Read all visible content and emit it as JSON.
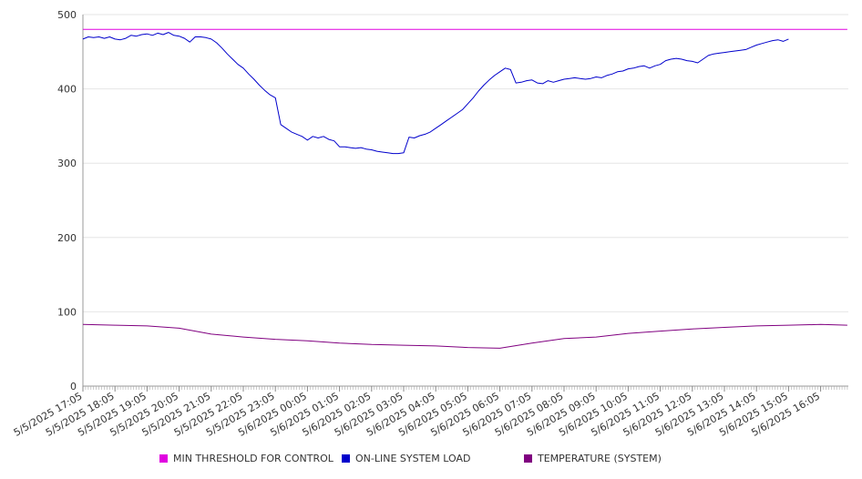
{
  "chart_data": {
    "type": "line",
    "ylim": [
      0,
      500
    ],
    "y_ticks": [
      "0",
      "100",
      "200",
      "300",
      "400",
      "500"
    ],
    "x_tick_labels": [
      "5/5/2025 17:05",
      "5/5/2025 18:05",
      "5/5/2025 19:05",
      "5/5/2025 20:05",
      "5/5/2025 21:05",
      "5/5/2025 22:05",
      "5/5/2025 23:05",
      "5/6/2025 00:05",
      "5/6/2025 01:05",
      "5/6/2025 02:05",
      "5/6/2025 03:05",
      "5/6/2025 04:05",
      "5/6/2025 05:05",
      "5/6/2025 06:05",
      "5/6/2025 07:05",
      "5/6/2025 08:05",
      "5/6/2025 09:05",
      "5/6/2025 10:05",
      "5/6/2025 11:05",
      "5/6/2025 12:05",
      "5/6/2025 13:05",
      "5/6/2025 14:05",
      "5/6/2025 15:05",
      "5/6/2025 16:05"
    ],
    "grid": "horizontal",
    "legend_position": "bottom",
    "series": [
      {
        "name": "MIN THRESHOLD FOR CONTROL",
        "color": "#e000e0",
        "points": [
          [
            "5/5/2025 17:05",
            480
          ],
          [
            "5/6/2025 16:55",
            480
          ]
        ]
      },
      {
        "name": "ON-LINE SYSTEM LOAD",
        "color": "#0000cc",
        "points": [
          [
            "5/5/2025 17:05",
            467
          ],
          [
            "5/5/2025 17:15",
            470
          ],
          [
            "5/5/2025 17:25",
            469
          ],
          [
            "5/5/2025 17:35",
            470
          ],
          [
            "5/5/2025 17:45",
            468
          ],
          [
            "5/5/2025 17:55",
            470
          ],
          [
            "5/5/2025 18:05",
            467
          ],
          [
            "5/5/2025 18:15",
            466
          ],
          [
            "5/5/2025 18:25",
            468
          ],
          [
            "5/5/2025 18:35",
            472
          ],
          [
            "5/5/2025 18:45",
            471
          ],
          [
            "5/5/2025 18:55",
            473
          ],
          [
            "5/5/2025 19:05",
            474
          ],
          [
            "5/5/2025 19:15",
            472
          ],
          [
            "5/5/2025 19:25",
            475
          ],
          [
            "5/5/2025 19:35",
            473
          ],
          [
            "5/5/2025 19:45",
            476
          ],
          [
            "5/5/2025 19:55",
            472
          ],
          [
            "5/5/2025 20:05",
            471
          ],
          [
            "5/5/2025 20:15",
            468
          ],
          [
            "5/5/2025 20:25",
            463
          ],
          [
            "5/5/2025 20:35",
            470
          ],
          [
            "5/5/2025 20:45",
            470
          ],
          [
            "5/5/2025 20:55",
            469
          ],
          [
            "5/5/2025 21:05",
            467
          ],
          [
            "5/5/2025 21:15",
            462
          ],
          [
            "5/5/2025 21:25",
            455
          ],
          [
            "5/5/2025 21:35",
            447
          ],
          [
            "5/5/2025 21:45",
            440
          ],
          [
            "5/5/2025 21:55",
            433
          ],
          [
            "5/5/2025 22:05",
            428
          ],
          [
            "5/5/2025 22:15",
            420
          ],
          [
            "5/5/2025 22:25",
            413
          ],
          [
            "5/5/2025 22:35",
            405
          ],
          [
            "5/5/2025 22:45",
            398
          ],
          [
            "5/5/2025 22:55",
            392
          ],
          [
            "5/5/2025 23:05",
            388
          ],
          [
            "5/5/2025 23:15",
            352
          ],
          [
            "5/5/2025 23:25",
            347
          ],
          [
            "5/5/2025 23:35",
            342
          ],
          [
            "5/5/2025 23:45",
            339
          ],
          [
            "5/5/2025 23:55",
            336
          ],
          [
            "5/6/2025 00:05",
            331
          ],
          [
            "5/6/2025 00:15",
            336
          ],
          [
            "5/6/2025 00:25",
            334
          ],
          [
            "5/6/2025 00:35",
            336
          ],
          [
            "5/6/2025 00:45",
            332
          ],
          [
            "5/6/2025 00:55",
            330
          ],
          [
            "5/6/2025 01:05",
            322
          ],
          [
            "5/6/2025 01:15",
            322
          ],
          [
            "5/6/2025 01:25",
            321
          ],
          [
            "5/6/2025 01:35",
            320
          ],
          [
            "5/6/2025 01:45",
            321
          ],
          [
            "5/6/2025 01:55",
            319
          ],
          [
            "5/6/2025 02:05",
            318
          ],
          [
            "5/6/2025 02:15",
            316
          ],
          [
            "5/6/2025 02:25",
            315
          ],
          [
            "5/6/2025 02:35",
            314
          ],
          [
            "5/6/2025 02:45",
            313
          ],
          [
            "5/6/2025 02:55",
            313
          ],
          [
            "5/6/2025 03:05",
            314
          ],
          [
            "5/6/2025 03:15",
            335
          ],
          [
            "5/6/2025 03:25",
            334
          ],
          [
            "5/6/2025 03:35",
            337
          ],
          [
            "5/6/2025 03:45",
            339
          ],
          [
            "5/6/2025 03:55",
            342
          ],
          [
            "5/6/2025 04:05",
            347
          ],
          [
            "5/6/2025 04:15",
            352
          ],
          [
            "5/6/2025 04:25",
            357
          ],
          [
            "5/6/2025 04:35",
            362
          ],
          [
            "5/6/2025 04:45",
            367
          ],
          [
            "5/6/2025 04:55",
            372
          ],
          [
            "5/6/2025 05:05",
            380
          ],
          [
            "5/6/2025 05:15",
            388
          ],
          [
            "5/6/2025 05:25",
            397
          ],
          [
            "5/6/2025 05:35",
            405
          ],
          [
            "5/6/2025 05:45",
            412
          ],
          [
            "5/6/2025 05:55",
            418
          ],
          [
            "5/6/2025 06:05",
            423
          ],
          [
            "5/6/2025 06:15",
            428
          ],
          [
            "5/6/2025 06:25",
            426
          ],
          [
            "5/6/2025 06:35",
            408
          ],
          [
            "5/6/2025 06:45",
            409
          ],
          [
            "5/6/2025 06:55",
            411
          ],
          [
            "5/6/2025 07:05",
            412
          ],
          [
            "5/6/2025 07:15",
            408
          ],
          [
            "5/6/2025 07:25",
            407
          ],
          [
            "5/6/2025 07:35",
            411
          ],
          [
            "5/6/2025 07:45",
            409
          ],
          [
            "5/6/2025 07:55",
            411
          ],
          [
            "5/6/2025 08:05",
            413
          ],
          [
            "5/6/2025 08:15",
            414
          ],
          [
            "5/6/2025 08:25",
            415
          ],
          [
            "5/6/2025 08:35",
            414
          ],
          [
            "5/6/2025 08:45",
            413
          ],
          [
            "5/6/2025 08:55",
            414
          ],
          [
            "5/6/2025 09:05",
            416
          ],
          [
            "5/6/2025 09:15",
            415
          ],
          [
            "5/6/2025 09:25",
            418
          ],
          [
            "5/6/2025 09:35",
            420
          ],
          [
            "5/6/2025 09:45",
            423
          ],
          [
            "5/6/2025 09:55",
            424
          ],
          [
            "5/6/2025 10:05",
            427
          ],
          [
            "5/6/2025 10:15",
            428
          ],
          [
            "5/6/2025 10:25",
            430
          ],
          [
            "5/6/2025 10:35",
            431
          ],
          [
            "5/6/2025 10:45",
            428
          ],
          [
            "5/6/2025 10:55",
            431
          ],
          [
            "5/6/2025 11:05",
            433
          ],
          [
            "5/6/2025 11:15",
            438
          ],
          [
            "5/6/2025 11:25",
            440
          ],
          [
            "5/6/2025 11:35",
            441
          ],
          [
            "5/6/2025 11:45",
            440
          ],
          [
            "5/6/2025 11:55",
            438
          ],
          [
            "5/6/2025 12:05",
            437
          ],
          [
            "5/6/2025 12:15",
            435
          ],
          [
            "5/6/2025 12:25",
            440
          ],
          [
            "5/6/2025 12:35",
            445
          ],
          [
            "5/6/2025 12:45",
            447
          ],
          [
            "5/6/2025 12:55",
            448
          ],
          [
            "5/6/2025 13:05",
            449
          ],
          [
            "5/6/2025 13:15",
            450
          ],
          [
            "5/6/2025 13:25",
            451
          ],
          [
            "5/6/2025 13:35",
            452
          ],
          [
            "5/6/2025 13:45",
            453
          ],
          [
            "5/6/2025 13:55",
            456
          ],
          [
            "5/6/2025 14:05",
            459
          ],
          [
            "5/6/2025 14:15",
            461
          ],
          [
            "5/6/2025 14:25",
            463
          ],
          [
            "5/6/2025 14:35",
            465
          ],
          [
            "5/6/2025 14:45",
            466
          ],
          [
            "5/6/2025 14:55",
            464
          ],
          [
            "5/6/2025 15:05",
            467
          ]
        ]
      },
      {
        "name": "TEMPERATURE (SYSTEM)",
        "color": "#800080",
        "points": [
          [
            "5/5/2025 17:05",
            83
          ],
          [
            "5/5/2025 18:05",
            82
          ],
          [
            "5/5/2025 19:05",
            81
          ],
          [
            "5/5/2025 20:05",
            78
          ],
          [
            "5/5/2025 21:05",
            70
          ],
          [
            "5/5/2025 22:05",
            66
          ],
          [
            "5/5/2025 23:05",
            63
          ],
          [
            "5/6/2025 00:05",
            61
          ],
          [
            "5/6/2025 01:05",
            58
          ],
          [
            "5/6/2025 02:05",
            56
          ],
          [
            "5/6/2025 03:05",
            55
          ],
          [
            "5/6/2025 04:05",
            54
          ],
          [
            "5/6/2025 05:05",
            52
          ],
          [
            "5/6/2025 06:05",
            51
          ],
          [
            "5/6/2025 07:05",
            58
          ],
          [
            "5/6/2025 08:05",
            64
          ],
          [
            "5/6/2025 09:05",
            66
          ],
          [
            "5/6/2025 10:05",
            71
          ],
          [
            "5/6/2025 11:05",
            74
          ],
          [
            "5/6/2025 12:05",
            77
          ],
          [
            "5/6/2025 13:05",
            79
          ],
          [
            "5/6/2025 14:05",
            81
          ],
          [
            "5/6/2025 15:05",
            82
          ],
          [
            "5/6/2025 16:05",
            83
          ],
          [
            "5/6/2025 16:55",
            82
          ]
        ]
      }
    ]
  }
}
